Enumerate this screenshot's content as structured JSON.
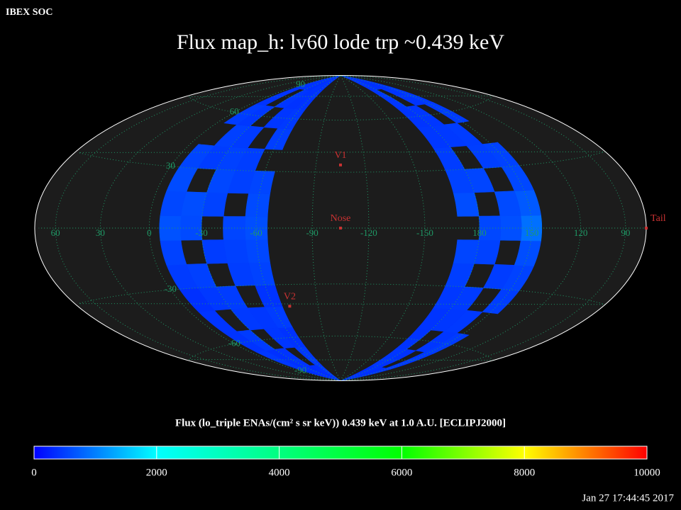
{
  "header": "IBEX SOC",
  "timestamp": "Jan 27 17:44:45 2017",
  "chart_data": {
    "type": "skymap",
    "projection": "hammer",
    "title": "Flux   map_h: lv60 lode trp ~0.439 keV",
    "center_lon": 255,
    "lon_ticks": [
      60,
      30,
      0,
      -30,
      -60,
      -90,
      -120,
      -150,
      180,
      150,
      120,
      90
    ],
    "lat_ticks": [
      90,
      60,
      30,
      -30,
      -60,
      -90
    ],
    "grid": true,
    "lat_bins": [
      -90,
      -78,
      -66,
      -54,
      -42,
      -30,
      -18,
      -6,
      6,
      18,
      30,
      42,
      54,
      66,
      78,
      90
    ],
    "regions": [
      {
        "lon_bins": [
          -66,
          -54,
          -42,
          -30,
          -18,
          -6
        ],
        "values": [
          [
            420,
            380,
            350,
            400,
            360
          ],
          [
            450,
            null,
            410,
            380,
            430
          ],
          [
            390,
            420,
            null,
            460,
            400
          ],
          [
            470,
            430,
            450,
            null,
            410
          ],
          [
            400,
            null,
            470,
            440,
            380
          ],
          [
            520,
            480,
            null,
            500,
            460
          ],
          [
            560,
            500,
            470,
            null,
            520
          ],
          [
            610,
            540,
            null,
            580,
            640
          ],
          [
            580,
            null,
            520,
            600,
            560
          ],
          [
            540,
            500,
            560,
            null,
            590
          ],
          [
            null,
            480,
            510,
            470,
            530
          ],
          [
            490,
            null,
            460,
            500,
            null
          ],
          [
            450,
            420,
            null,
            430,
            470
          ],
          [
            410,
            390,
            420,
            null,
            400
          ],
          [
            380,
            400,
            370,
            390,
            410
          ]
        ]
      },
      {
        "lon_bins": [
          144,
          156,
          168,
          180,
          192
        ],
        "values": [
          [
            400,
            380,
            410,
            370
          ],
          [
            430,
            null,
            390,
            420
          ],
          [
            460,
            420,
            null,
            400
          ],
          [
            null,
            450,
            430,
            410
          ],
          [
            480,
            null,
            460,
            440
          ],
          [
            520,
            470,
            null,
            490
          ],
          [
            600,
            null,
            510,
            540
          ],
          [
            880,
            620,
            560,
            null
          ],
          [
            700,
            580,
            null,
            600
          ],
          [
            560,
            null,
            540,
            520
          ],
          [
            520,
            490,
            null,
            470
          ],
          [
            null,
            470,
            450,
            430
          ],
          [
            460,
            null,
            430,
            410
          ],
          [
            430,
            410,
            null,
            420
          ],
          [
            400,
            380,
            390,
            410
          ]
        ]
      }
    ],
    "markers": [
      {
        "name": "V1",
        "lon": 255,
        "lat": 34
      },
      {
        "name": "Nose",
        "lon": 255,
        "lat": 0
      },
      {
        "name": "V2",
        "lon": 289,
        "lat": -42
      },
      {
        "name": "Tail",
        "lon": 75,
        "lat": 0
      }
    ],
    "marker_color": "#c83232",
    "grid_color": "#1f9a66",
    "colorbar": {
      "label": "Flux (lo_triple ENAs/(cm² s sr keV))  0.439 keV at 1.0 A.U. [ECLIPJ2000]",
      "lim": [
        0,
        10000
      ],
      "ticks": [
        0,
        2000,
        4000,
        6000,
        8000,
        10000
      ],
      "colormap": [
        "#0000ff",
        "#00ffff",
        "#00ff80",
        "#00ff00",
        "#ffff00",
        "#ff0000"
      ]
    }
  }
}
